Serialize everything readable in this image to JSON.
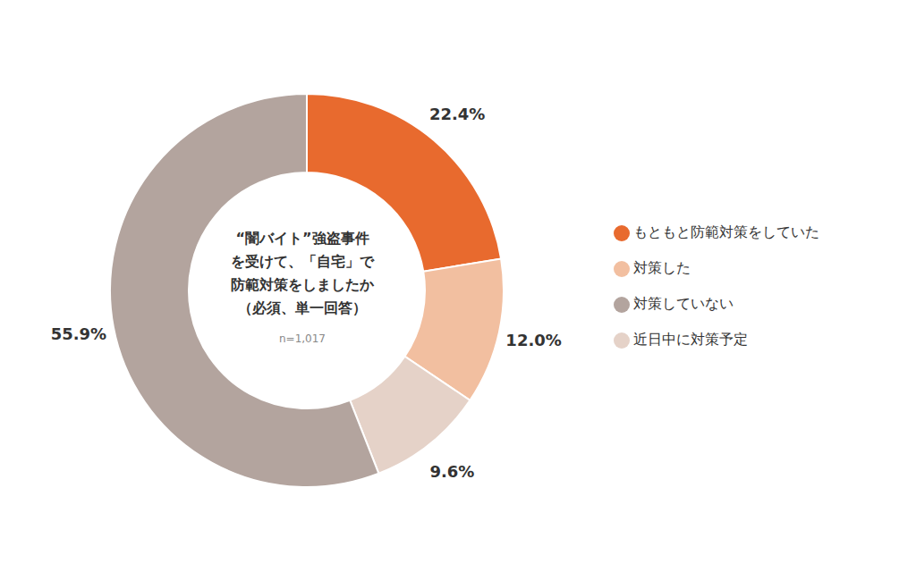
{
  "chart_data": {
    "type": "pie",
    "categories": [
      "もともと防範対策をしていた",
      "対策した",
      "近日中に対策予定",
      "対策していない"
    ],
    "values": [
      22.4,
      12.0,
      9.6,
      55.9
    ],
    "value_labels": [
      "22.4%",
      "12.0%",
      "9.6%",
      "55.9%"
    ],
    "colors": [
      "#E86A2E",
      "#F2BFA0",
      "#E5D2C8",
      "#B3A49E"
    ],
    "annotations": [
      "“闇バイト”強盗事件",
      "を受けて、「自宅」で",
      "防範対策をしましたか",
      "（必須、単一回答）",
      "n=1,017"
    ],
    "legend": "right",
    "data_labels": true
  }
}
